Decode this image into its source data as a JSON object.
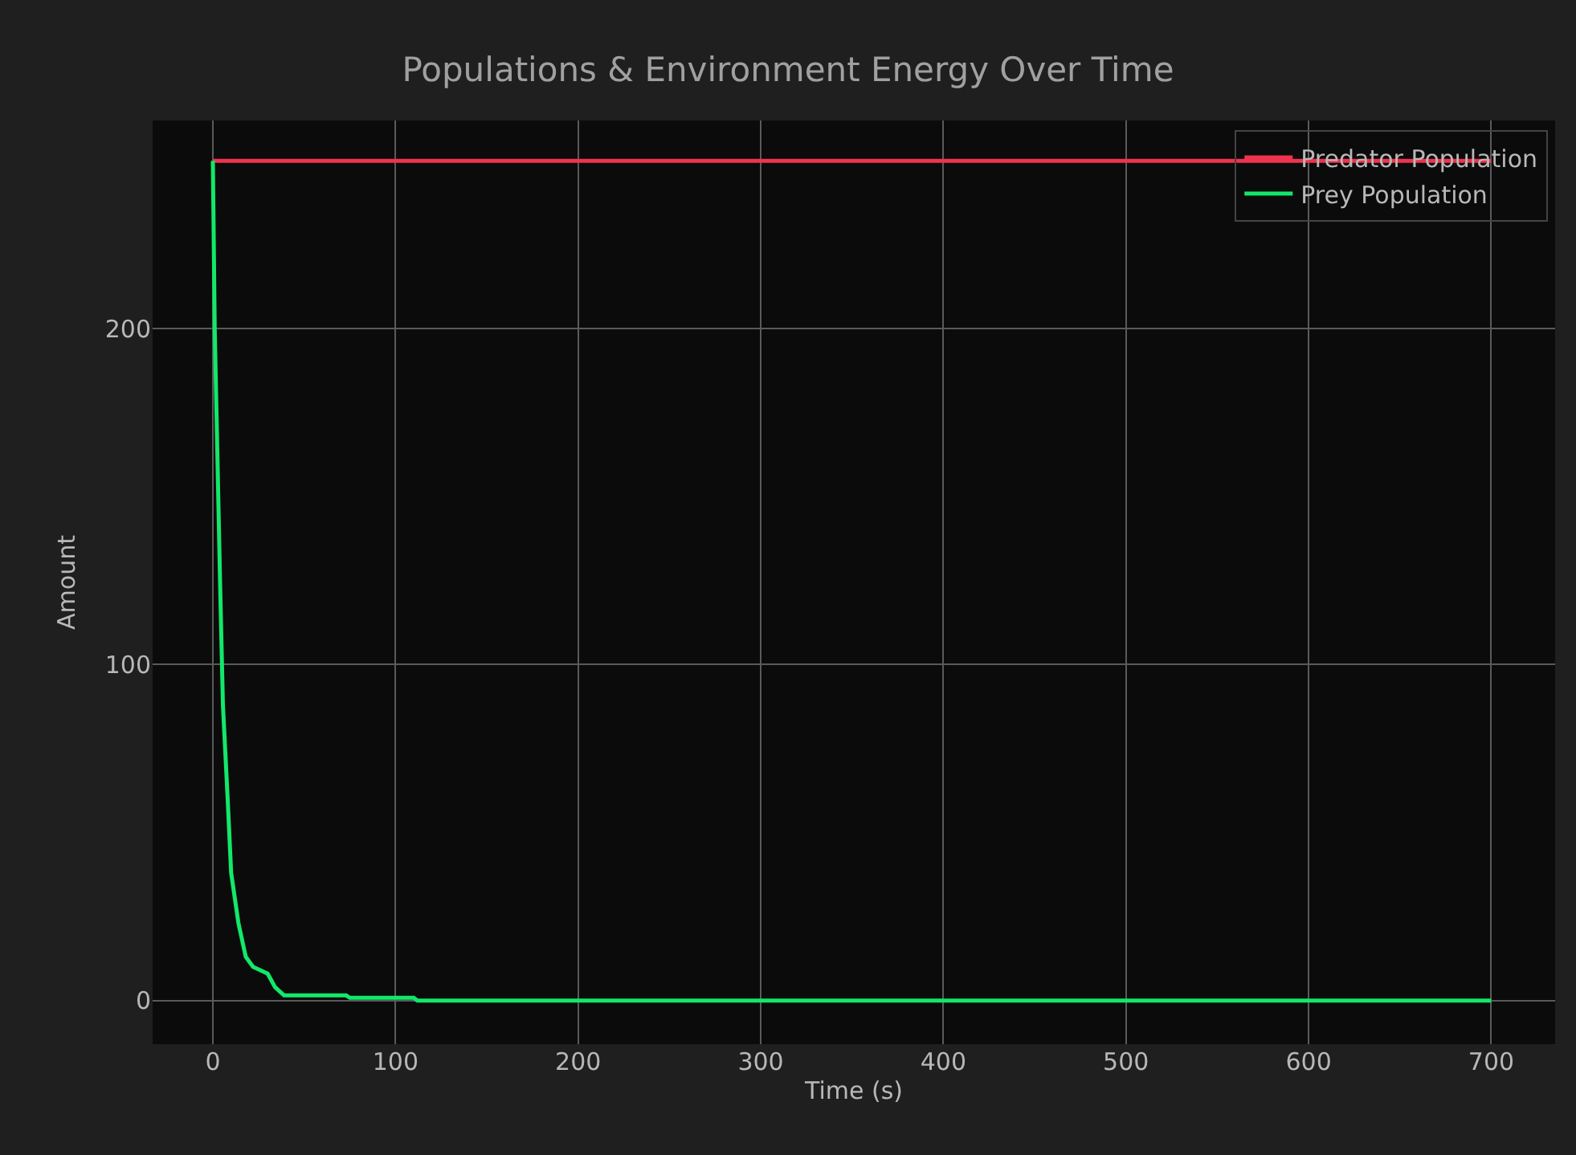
{
  "chart_data": {
    "type": "line",
    "title": "Populations & Environment Energy Over Time",
    "xlabel": "Time (s)",
    "ylabel": "Amount",
    "xlim": [
      -33,
      735
    ],
    "xticks": [
      0,
      100,
      200,
      300,
      400,
      500,
      600,
      700
    ],
    "ylim": [
      -13,
      262
    ],
    "yticks": [
      0,
      100,
      200
    ],
    "grid": true,
    "legend": "top right",
    "series": [
      {
        "name": "Predator Population",
        "color": "#f0334f",
        "x": [
          0,
          700
        ],
        "values": [
          250,
          250
        ]
      },
      {
        "name": "Prey Population",
        "color": "#12e86a",
        "x": [
          0,
          1,
          4,
          5.5,
          8,
          10,
          14,
          18,
          22,
          26,
          30,
          32,
          34,
          36,
          39,
          73,
          75,
          110,
          112,
          700
        ],
        "values": [
          250,
          200,
          123,
          88,
          61,
          38,
          23,
          13,
          10,
          9,
          8,
          6,
          4,
          3,
          1.5,
          1.5,
          0.8,
          0.8,
          0,
          0
        ]
      }
    ]
  }
}
